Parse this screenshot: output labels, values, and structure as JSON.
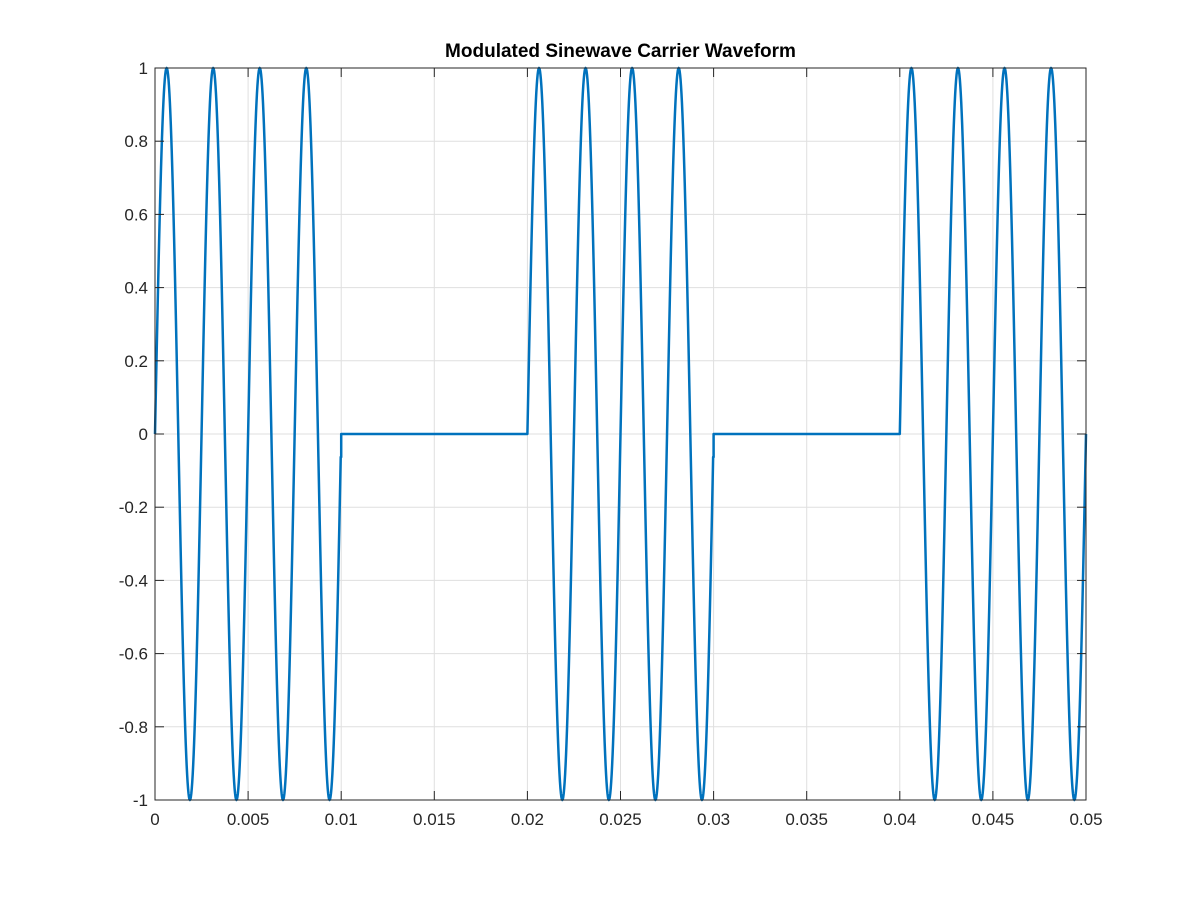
{
  "chart_data": {
    "type": "line",
    "title": "Modulated Sinewave Carrier Waveform",
    "xlabel": "",
    "ylabel": "",
    "xlim": [
      0,
      0.05
    ],
    "ylim": [
      -1,
      1
    ],
    "x_ticks": [
      0,
      0.005,
      0.01,
      0.015,
      0.02,
      0.025,
      0.03,
      0.035,
      0.04,
      0.045,
      0.05
    ],
    "x_tick_labels": [
      "0",
      "0.005",
      "0.01",
      "0.015",
      "0.02",
      "0.025",
      "0.03",
      "0.035",
      "0.04",
      "0.045",
      "0.05"
    ],
    "y_ticks": [
      -1,
      -0.8,
      -0.6,
      -0.4,
      -0.2,
      0,
      0.2,
      0.4,
      0.6,
      0.8,
      1
    ],
    "y_tick_labels": [
      "-1",
      "-0.8",
      "-0.6",
      "-0.4",
      "-0.2",
      "0",
      "0.2",
      "0.4",
      "0.6",
      "0.8",
      "1"
    ],
    "grid": true,
    "series": [
      {
        "color": "#0072bd",
        "carrier_frequency_hz": 400,
        "amplitude": 1,
        "segments": [
          {
            "x_start": 0,
            "x_end": 0.01,
            "state": "on"
          },
          {
            "x_start": 0.01,
            "x_end": 0.02,
            "state": "off"
          },
          {
            "x_start": 0.02,
            "x_end": 0.03,
            "state": "on"
          },
          {
            "x_start": 0.03,
            "x_end": 0.04,
            "state": "off"
          },
          {
            "x_start": 0.04,
            "x_end": 0.05,
            "state": "on"
          }
        ]
      }
    ]
  }
}
